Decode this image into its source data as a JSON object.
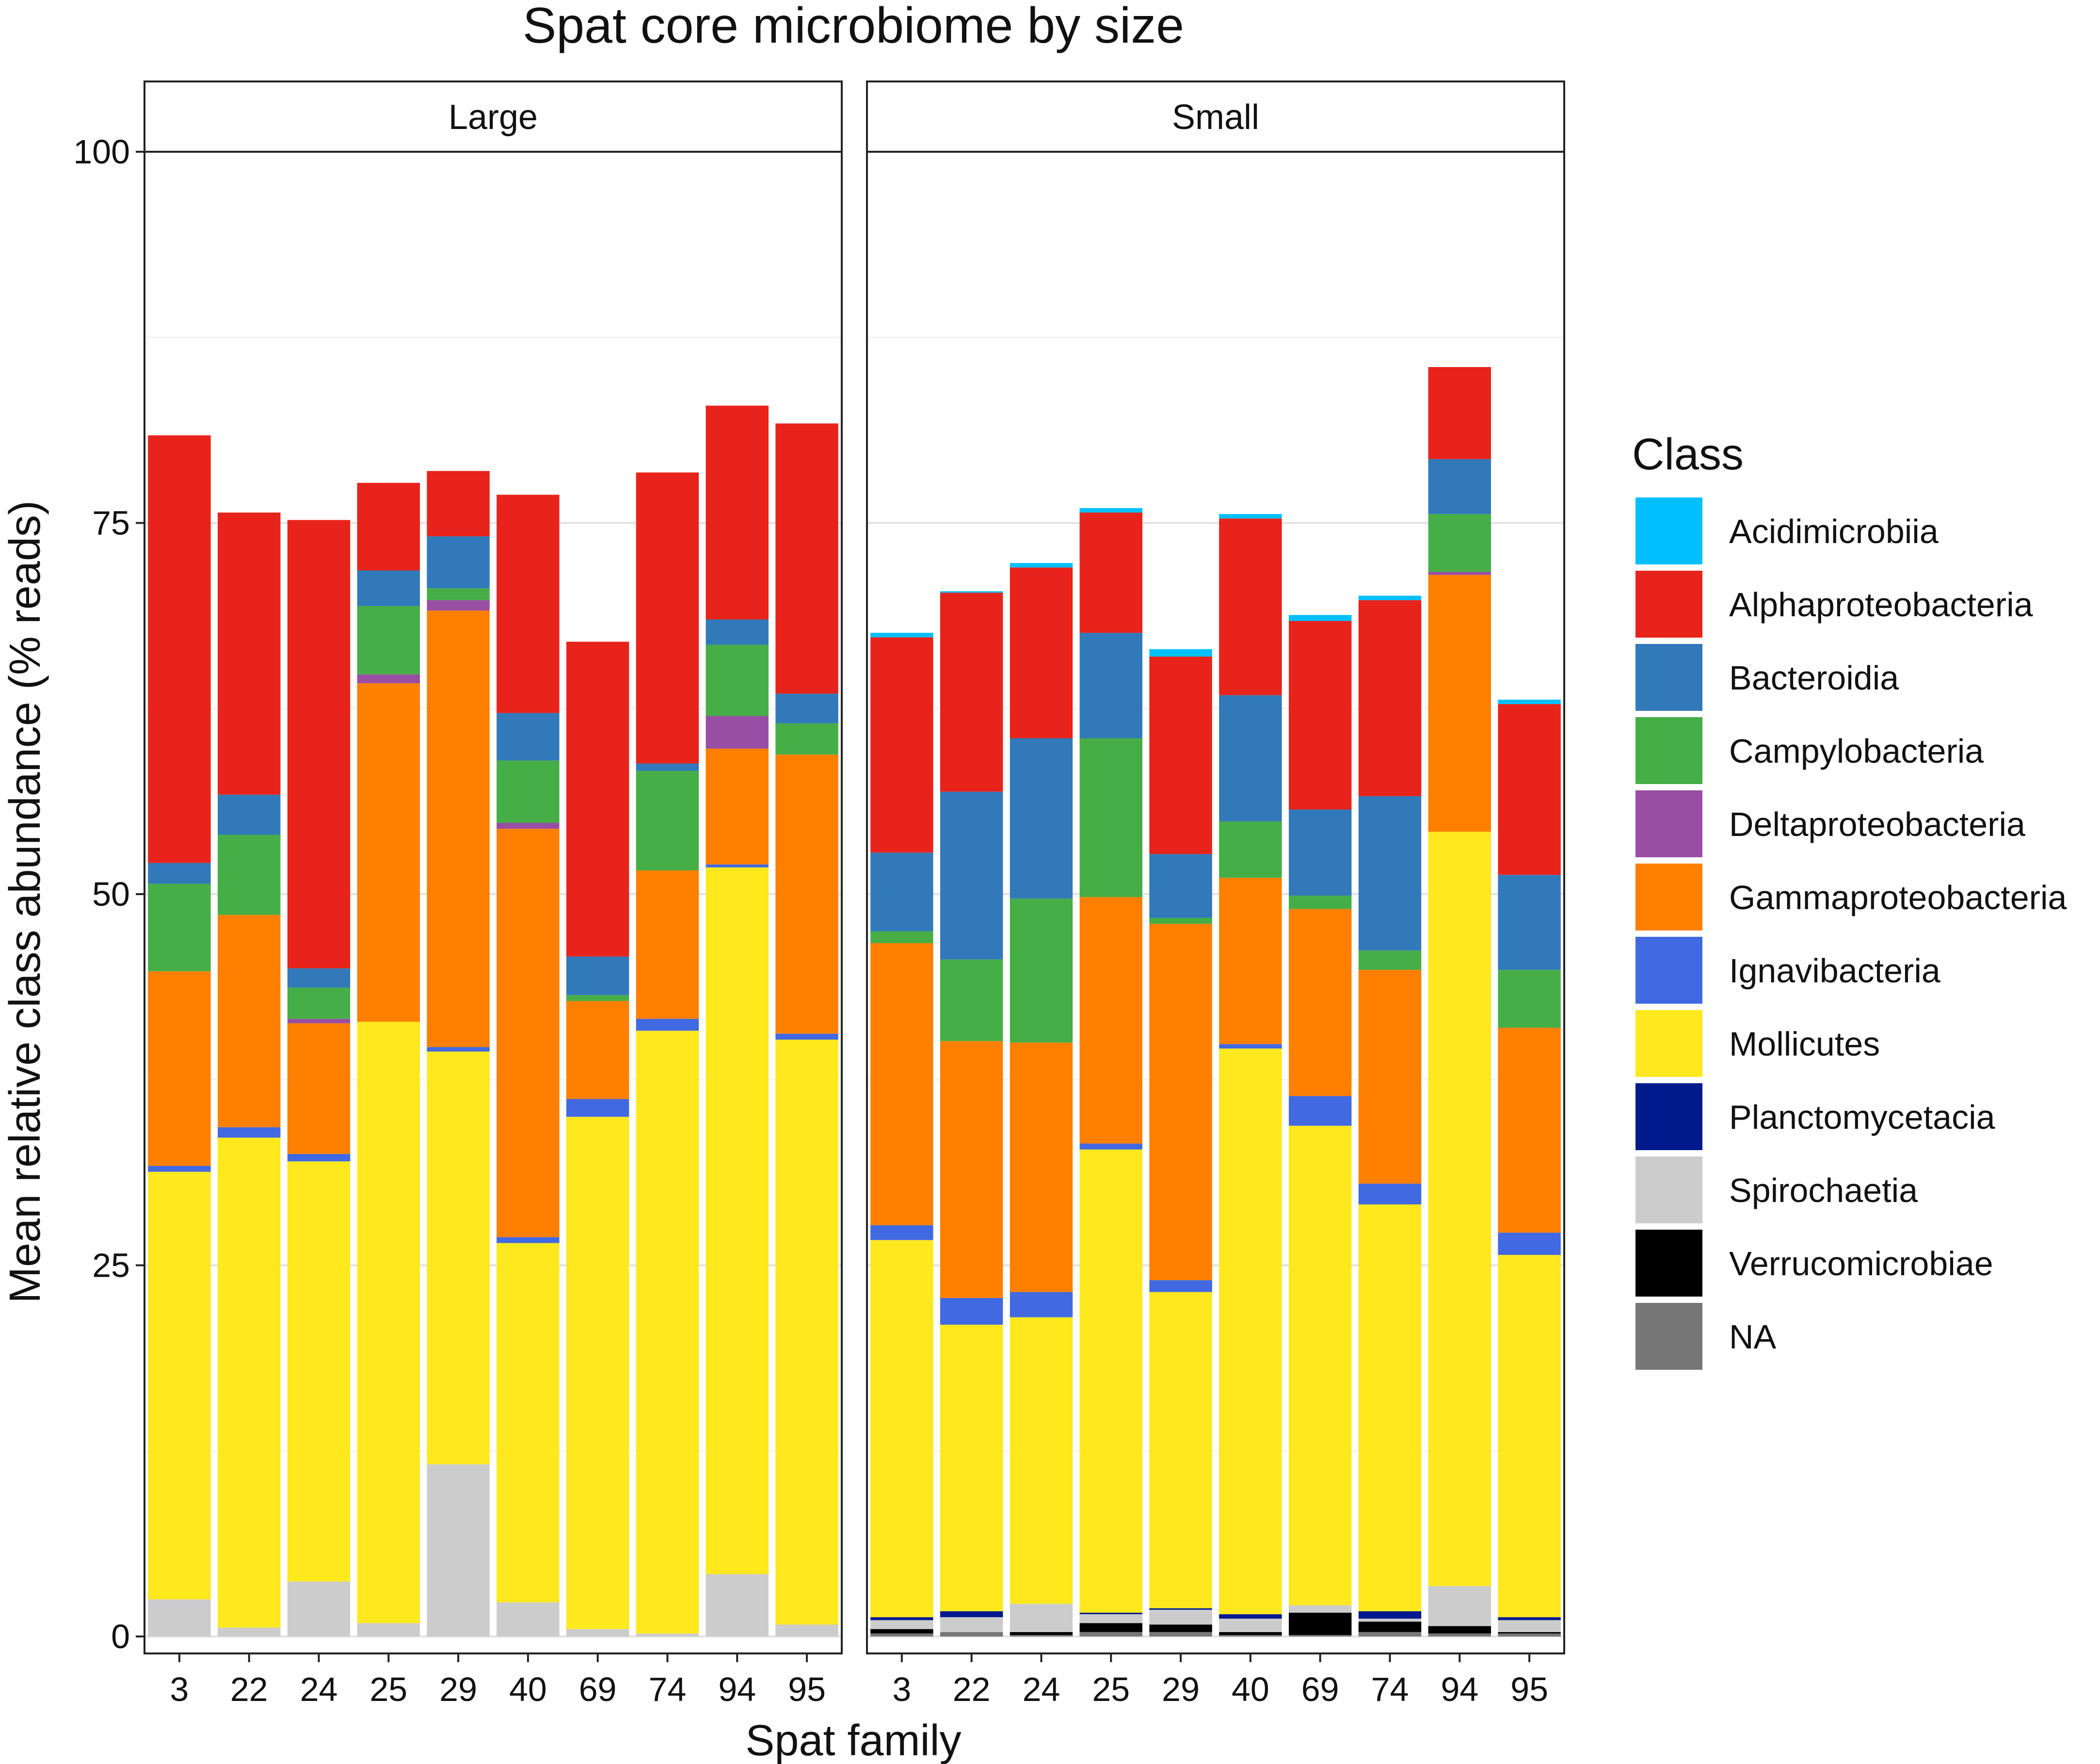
{
  "chart_data": {
    "type": "bar",
    "stacked": true,
    "title": "Spat core microbiome by size",
    "xlabel": "Spat family",
    "ylabel": "Mean relative class abundance (% reads)",
    "ylim": [
      0,
      100
    ],
    "yticks": [
      0,
      25,
      50,
      75,
      100
    ],
    "grid": true,
    "legend_title": "Class",
    "legend_position": "right",
    "classes": [
      {
        "name": "Acidimicrobiia",
        "color": "#00BFFF"
      },
      {
        "name": "Alphaproteobacteria",
        "color": "#E8231B"
      },
      {
        "name": "Bacteroidia",
        "color": "#3279BA"
      },
      {
        "name": "Campylobacteria",
        "color": "#45AE47"
      },
      {
        "name": "Deltaproteobacteria",
        "color": "#984EA3"
      },
      {
        "name": "Gammaproteobacteria",
        "color": "#FF7F00"
      },
      {
        "name": "Ignavibacteria",
        "color": "#4169E1"
      },
      {
        "name": "Mollicutes",
        "color": "#FFE81E"
      },
      {
        "name": "Planctomycetacia",
        "color": "#001A8E"
      },
      {
        "name": "Spirochaetia",
        "color": "#CCCCCC"
      },
      {
        "name": "Verrucomicrobiae",
        "color": "#000000"
      },
      {
        "name": "NA",
        "color": "#777777"
      }
    ],
    "stack_order_bottom_to_top": [
      "NA",
      "Verrucomicrobiae",
      "Spirochaetia",
      "Planctomycetacia",
      "Mollicutes",
      "Ignavibacteria",
      "Gammaproteobacteria",
      "Deltaproteobacteria",
      "Campylobacteria",
      "Bacteroidia",
      "Alphaproteobacteria",
      "Acidimicrobiia"
    ],
    "categories": [
      "3",
      "22",
      "24",
      "25",
      "29",
      "40",
      "69",
      "74",
      "94",
      "95"
    ],
    "panels": [
      {
        "label": "Large",
        "series": [
          {
            "name": "NA",
            "values": [
              0,
              0,
              0,
              0,
              0,
              0,
              0,
              0,
              0,
              0
            ]
          },
          {
            "name": "Verrucomicrobiae",
            "values": [
              0,
              0,
              0,
              0,
              0,
              0,
              0,
              0,
              0,
              0
            ]
          },
          {
            "name": "Spirochaetia",
            "values": [
              2.5,
              0.6,
              3.7,
              0.9,
              11.6,
              2.3,
              0.5,
              0.2,
              4.2,
              0.8
            ]
          },
          {
            "name": "Planctomycetacia",
            "values": [
              0,
              0,
              0,
              0,
              0,
              0,
              0,
              0,
              0,
              0
            ]
          },
          {
            "name": "Mollicutes",
            "values": [
              28.8,
              33.0,
              28.3,
              40.5,
              27.8,
              24.2,
              34.5,
              40.6,
              47.6,
              39.4
            ]
          },
          {
            "name": "Ignavibacteria",
            "values": [
              0.4,
              0.7,
              0.5,
              0,
              0.3,
              0.4,
              1.2,
              0.8,
              0.2,
              0.4
            ]
          },
          {
            "name": "Gammaproteobacteria",
            "values": [
              13.1,
              14.3,
              8.8,
              22.8,
              29.4,
              27.5,
              6.6,
              10.0,
              7.8,
              18.8
            ]
          },
          {
            "name": "Deltaproteobacteria",
            "values": [
              0,
              0,
              0.3,
              0.6,
              0.7,
              0.4,
              0,
              0,
              2.2,
              0
            ]
          },
          {
            "name": "Campylobacteria",
            "values": [
              5.9,
              5.4,
              2.1,
              4.6,
              0.8,
              4.2,
              0.4,
              6.7,
              4.8,
              2.1
            ]
          },
          {
            "name": "Bacteroidia",
            "values": [
              1.4,
              2.7,
              1.3,
              2.4,
              3.5,
              3.2,
              2.6,
              0.5,
              1.7,
              2.0
            ]
          },
          {
            "name": "Alphaproteobacteria",
            "values": [
              28.8,
              19.0,
              30.2,
              5.9,
              4.4,
              14.7,
              21.2,
              19.6,
              14.4,
              18.2
            ]
          },
          {
            "name": "Acidimicrobiia",
            "values": [
              0,
              0,
              0,
              0,
              0,
              0,
              0,
              0,
              0,
              0
            ]
          }
        ]
      },
      {
        "label": "Small",
        "series": [
          {
            "name": "NA",
            "values": [
              0.2,
              0.3,
              0.1,
              0.3,
              0.3,
              0.1,
              0.1,
              0.3,
              0.2,
              0.2
            ]
          },
          {
            "name": "Verrucomicrobiae",
            "values": [
              0.3,
              0,
              0.2,
              0.6,
              0.5,
              0.2,
              1.5,
              0.7,
              0.5,
              0.1
            ]
          },
          {
            "name": "Spirochaetia",
            "values": [
              0.6,
              1.0,
              1.9,
              0.6,
              1.0,
              0.9,
              0.5,
              0.2,
              2.7,
              0.8
            ]
          },
          {
            "name": "Planctomycetacia",
            "values": [
              0.2,
              0.4,
              0,
              0.1,
              0.1,
              0.3,
              0,
              0.5,
              0,
              0.2
            ]
          },
          {
            "name": "Mollicutes",
            "values": [
              25.4,
              19.3,
              19.3,
              31.2,
              21.3,
              38.1,
              32.3,
              27.4,
              50.8,
              24.4
            ]
          },
          {
            "name": "Ignavibacteria",
            "values": [
              1.0,
              1.8,
              1.7,
              0.4,
              0.8,
              0.3,
              2.0,
              1.4,
              0,
              1.5
            ]
          },
          {
            "name": "Gammaproteobacteria",
            "values": [
              19.0,
              17.3,
              16.8,
              16.6,
              24.0,
              11.2,
              12.6,
              14.4,
              17.3,
              13.8
            ]
          },
          {
            "name": "Deltaproteobacteria",
            "values": [
              0,
              0,
              0,
              0,
              0,
              0,
              0,
              0,
              0.2,
              0
            ]
          },
          {
            "name": "Campylobacteria",
            "values": [
              0.8,
              5.5,
              9.7,
              10.7,
              0.4,
              3.8,
              0.9,
              1.3,
              3.9,
              3.9
            ]
          },
          {
            "name": "Bacteroidia",
            "values": [
              5.3,
              11.3,
              10.8,
              7.1,
              4.3,
              8.5,
              5.8,
              10.4,
              3.7,
              6.4
            ]
          },
          {
            "name": "Alphaproteobacteria",
            "values": [
              14.5,
              13.4,
              11.5,
              8.1,
              13.3,
              11.9,
              12.7,
              13.2,
              6.2,
              11.5
            ]
          },
          {
            "name": "Acidimicrobiia",
            "values": [
              0.3,
              0.1,
              0.3,
              0.3,
              0.5,
              0.3,
              0.4,
              0.3,
              0,
              0.3
            ]
          }
        ]
      }
    ]
  }
}
